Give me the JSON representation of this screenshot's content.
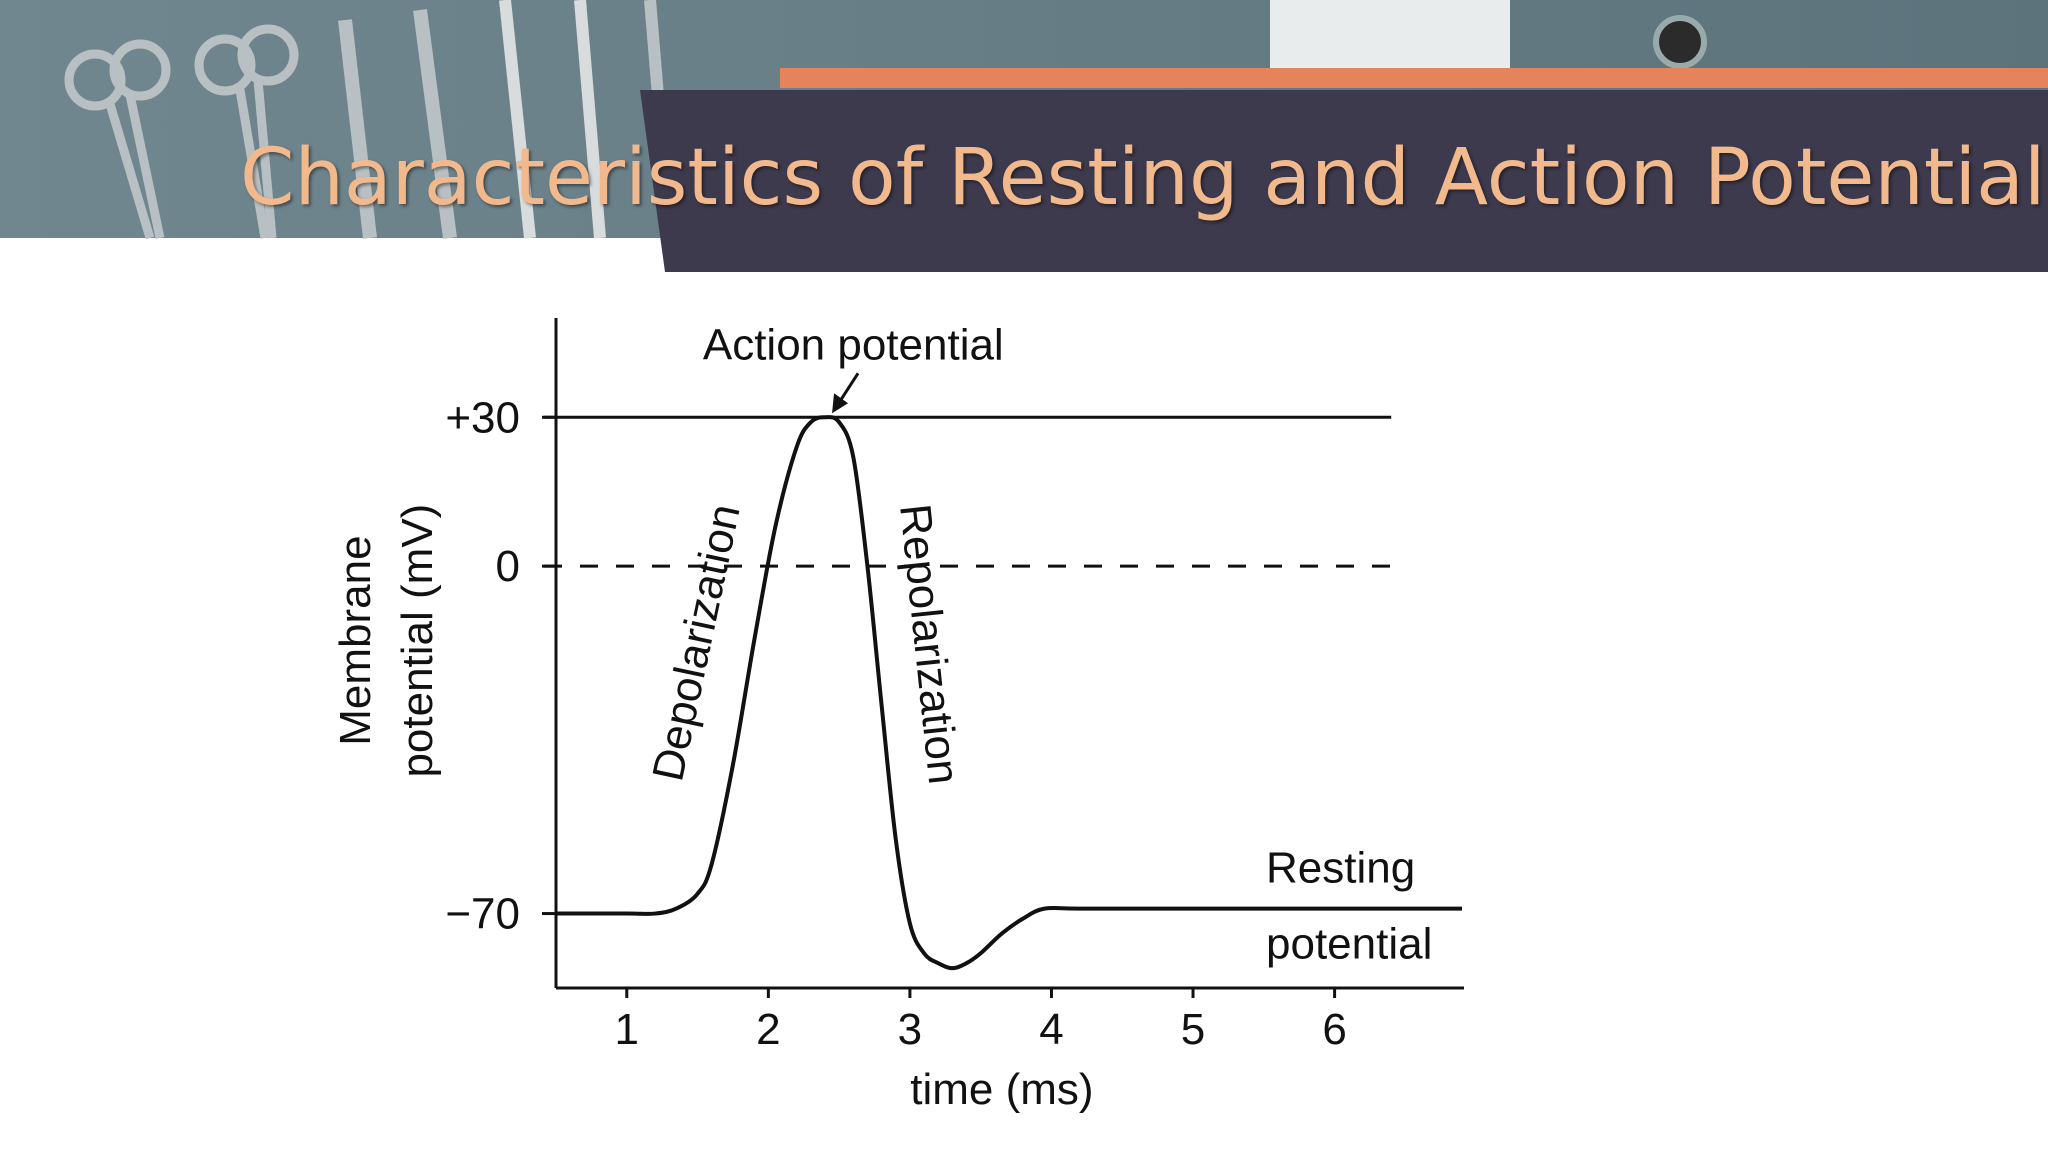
{
  "slide": {
    "title": "Characteristics of Resting and Action Potential"
  },
  "colors": {
    "banner_photo": "#6f8790",
    "banner_dark": "#3e3a4e",
    "banner_accent": "#e5845a",
    "title_text": "#f2b98d"
  },
  "chart_data": {
    "type": "line",
    "title": "",
    "xlabel": "time (ms)",
    "ylabel": "Membrane potential (mV)",
    "ylabel_lines": [
      "Membrane",
      "potential (mV)"
    ],
    "xlim": [
      0.5,
      6.9
    ],
    "ylim": [
      -85,
      50
    ],
    "x_ticks": [
      1,
      2,
      3,
      4,
      5,
      6
    ],
    "x_tick_labels": [
      "1",
      "2",
      "3",
      "4",
      "5",
      "6"
    ],
    "y_ticks": [
      30,
      0,
      -70
    ],
    "y_tick_labels": [
      "+30",
      "0",
      "−70"
    ],
    "grid": false,
    "reference_lines": [
      {
        "y": 30,
        "style": "solid"
      },
      {
        "y": 0,
        "style": "dashed"
      }
    ],
    "series": [
      {
        "x": [
          0.5,
          1.0,
          1.2,
          1.35,
          1.5,
          1.6,
          1.75,
          1.9,
          2.05,
          2.2,
          2.3,
          2.4,
          2.5,
          2.6,
          2.7,
          2.8,
          2.9,
          3.0,
          3.1,
          3.2,
          3.3,
          3.4,
          3.5,
          3.65,
          3.8,
          3.95,
          4.2,
          5.0,
          6.0,
          6.9
        ],
        "y": [
          -70,
          -70,
          -70,
          -69,
          -66,
          -60,
          -40,
          -15,
          8,
          24,
          29,
          30,
          29,
          22,
          0,
          -28,
          -55,
          -72,
          -78,
          -80,
          -81,
          -80,
          -78,
          -74,
          -71,
          -69,
          -69,
          -69,
          -69,
          -69
        ]
      }
    ],
    "annotations": [
      {
        "text": "Action potential",
        "points_to": {
          "x": 2.45,
          "y": 30
        }
      },
      {
        "text": "Depolarization",
        "orientation": "rotated-up",
        "near": {
          "x": 1.65,
          "y": -15
        }
      },
      {
        "text": "Repolarization",
        "orientation": "rotated-down",
        "near": {
          "x": 2.85,
          "y": -15
        }
      },
      {
        "text": "Resting",
        "near": {
          "x": 5.7,
          "y": -66
        }
      },
      {
        "text": "potential",
        "near": {
          "x": 5.85,
          "y": -77
        }
      }
    ]
  }
}
